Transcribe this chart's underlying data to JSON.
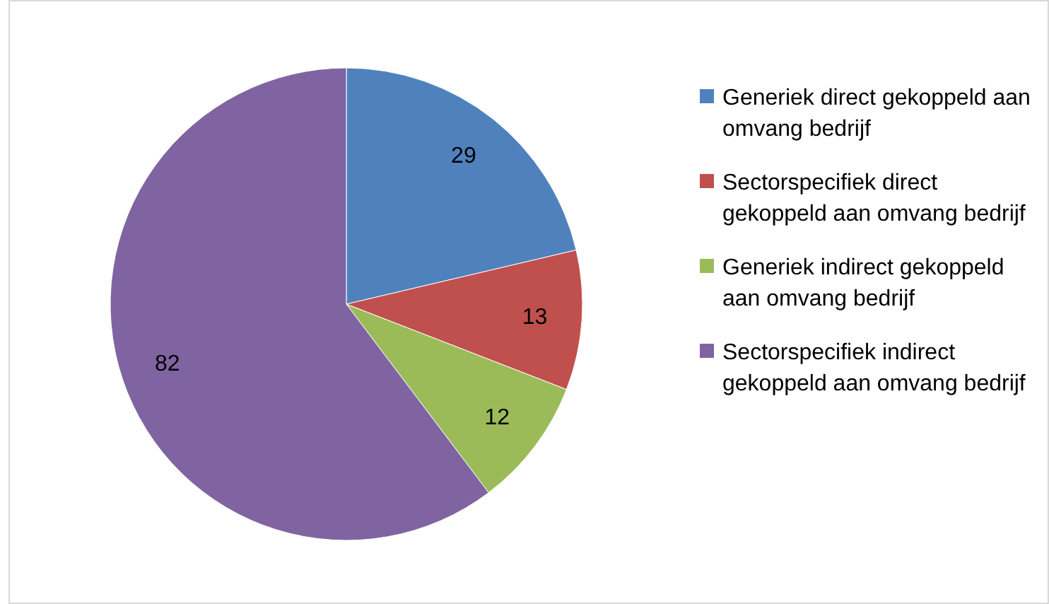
{
  "chart_data": {
    "type": "pie",
    "categories": [
      "Generiek direct gekoppeld aan omvang bedrijf",
      "Sectorspecifiek direct gekoppeld aan omvang bedrijf",
      "Generiek indirect gekoppeld aan omvang bedrijf",
      "Sectorspecifiek indirect gekoppeld aan omvang bedrijf"
    ],
    "values": [
      29,
      13,
      12,
      82
    ],
    "colors": [
      "#4f81bd",
      "#c0504d",
      "#9bbb59",
      "#8064a2"
    ],
    "data_labels": true,
    "legend": "right"
  }
}
